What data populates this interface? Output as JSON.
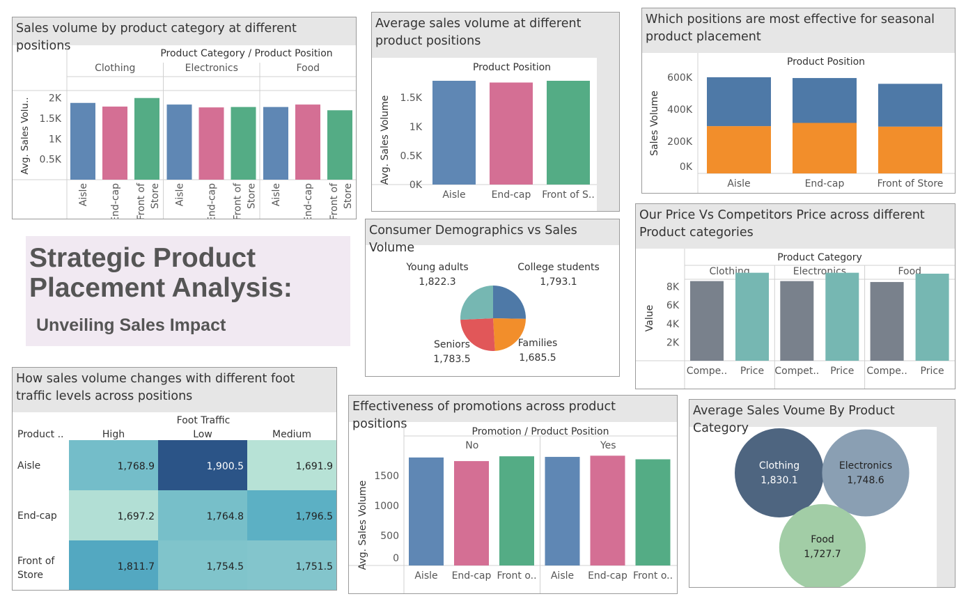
{
  "colors": {
    "aisle": "#5f87b4",
    "endcap": "#d46f94",
    "front": "#54ac85",
    "blue": "#4e79a7",
    "orange": "#f28e2b",
    "red": "#e15759",
    "teal": "#76b7b2",
    "grey": "#79818c"
  },
  "dashboard": {
    "title_line1": "Strategic Product",
    "title_line2": "Placement Analysis:",
    "subtitle": "Unveiling Sales Impact"
  },
  "panels": {
    "category_positions": {
      "title": "Sales volume by product category at different positions",
      "header": "Product Category  /  Product Position",
      "ylabel": "Avg. Sales Volu..",
      "yticks": [
        "2K",
        "1.5K",
        "1K",
        "0.5K"
      ],
      "groups": [
        "Clothing",
        "Electronics",
        "Food"
      ],
      "xlabels": [
        "Aisle",
        "End-cap",
        "Front of Store"
      ]
    },
    "avg_positions": {
      "title": "Average sales volume at different product positions",
      "header": "Product Position",
      "ylabel": "Avg. Sales Volume",
      "yticks": [
        "1.5K",
        "1K",
        "0.5K",
        "0K"
      ],
      "xlabels": [
        "Aisle",
        "End-cap",
        "Front of S.."
      ]
    },
    "seasonal": {
      "title": "Which positions are most effective for seasonal product placement",
      "header": "Product Position",
      "ylabel": "Sales Volume",
      "yticks": [
        "600K",
        "400K",
        "200K",
        "0K"
      ],
      "xlabels": [
        "Aisle",
        "End-cap",
        "Front of Store"
      ]
    },
    "demographics": {
      "title": "Consumer Demographics vs Sales Volume",
      "labels": [
        {
          "name": "Young adults",
          "value": "1,822.3"
        },
        {
          "name": "College students",
          "value": "1,793.1"
        },
        {
          "name": "Seniors",
          "value": "1,783.5"
        },
        {
          "name": "Families",
          "value": "1,685.5"
        }
      ]
    },
    "price": {
      "title": "Our Price Vs Competitors Price across different Product categories",
      "header": "Product Category",
      "ylabel": "Value",
      "yticks": [
        "8K",
        "6K",
        "4K",
        "2K"
      ],
      "groups": [
        "Clothing",
        "Electronics",
        "Food"
      ],
      "xlabels": [
        "Compe..",
        "Price",
        "Compet..",
        "Price",
        "Compe..",
        "Price"
      ]
    },
    "foot_traffic": {
      "title": "How sales volume changes with different foot traffic levels across positions",
      "col_group": "Foot Traffic",
      "row_header": "Product ..",
      "columns": [
        "High",
        "Low",
        "Medium"
      ],
      "rows": [
        {
          "label": "Aisle",
          "cells": [
            "1,768.9",
            "1,900.5",
            "1,691.9"
          ]
        },
        {
          "label": "End-cap",
          "cells": [
            "1,697.2",
            "1,764.8",
            "1,796.5"
          ]
        },
        {
          "label": "Front of Store",
          "cells": [
            "1,811.7",
            "1,754.5",
            "1,751.5"
          ]
        }
      ]
    },
    "promotions": {
      "title": "Effectiveness of promotions across product positions",
      "header": "Promotion  /  Product Position",
      "ylabel": "Avg. Sales Volume",
      "yticks": [
        "1500",
        "1000",
        "500",
        "0"
      ],
      "groups": [
        "No",
        "Yes"
      ],
      "xlabels": [
        "Aisle",
        "End-cap",
        "Front o..",
        "Aisle",
        "End-cap",
        "Front o.."
      ]
    },
    "category_bubbles": {
      "title": "Average Sales Voume By Product Category",
      "bubbles": [
        {
          "name": "Clothing",
          "value": "1,830.1"
        },
        {
          "name": "Electronics",
          "value": "1,748.6"
        },
        {
          "name": "Food",
          "value": "1,727.7"
        }
      ]
    }
  },
  "chart_data": [
    {
      "type": "bar",
      "id": "category_positions",
      "categories": [
        "Clothing / Aisle",
        "Clothing / End-cap",
        "Clothing / Front of Store",
        "Electronics / Aisle",
        "Electronics / End-cap",
        "Electronics / Front of Store",
        "Food / Aisle",
        "Food / End-cap",
        "Food / Front of Store"
      ],
      "values": [
        1880,
        1790,
        2000,
        1840,
        1770,
        1780,
        1780,
        1840,
        1700
      ],
      "ylim": [
        0,
        2200
      ]
    },
    {
      "type": "bar",
      "id": "avg_positions",
      "categories": [
        "Aisle",
        "End-cap",
        "Front of Store"
      ],
      "values": [
        1790,
        1760,
        1790
      ],
      "ylim": [
        0,
        1850
      ]
    },
    {
      "type": "bar",
      "id": "seasonal",
      "stacked": true,
      "categories": [
        "Aisle",
        "End-cap",
        "Front of Store"
      ],
      "series": [
        {
          "values": [
            295000,
            315000,
            292000
          ],
          "color": "#f28e2b"
        },
        {
          "values": [
            305000,
            280000,
            267000
          ],
          "color": "#4e79a7"
        }
      ],
      "ylim": [
        0,
        630000
      ]
    },
    {
      "type": "pie",
      "id": "demographics",
      "categories": [
        "College students",
        "Families",
        "Seniors",
        "Young adults"
      ],
      "values": [
        1793.1,
        1685.5,
        1783.5,
        1822.3
      ]
    },
    {
      "type": "bar",
      "id": "price",
      "categories": [
        "Clothing / Compe..",
        "Clothing / Price",
        "Electronics / Compet..",
        "Electronics / Price",
        "Food / Compe..",
        "Food / Price"
      ],
      "values": [
        8600,
        9500,
        8600,
        9500,
        8500,
        9400
      ],
      "ylim": [
        0,
        10000
      ]
    },
    {
      "type": "heatmap",
      "id": "foot_traffic",
      "x": [
        "High",
        "Low",
        "Medium"
      ],
      "y": [
        "Aisle",
        "End-cap",
        "Front of Store"
      ],
      "values": [
        [
          1768.9,
          1900.5,
          1691.9
        ],
        [
          1697.2,
          1764.8,
          1796.5
        ],
        [
          1811.7,
          1754.5,
          1751.5
        ]
      ]
    },
    {
      "type": "bar",
      "id": "promotions",
      "categories": [
        "No / Aisle",
        "No / End-cap",
        "No / Front of Store",
        "Yes / Aisle",
        "Yes / End-cap",
        "Yes / Front of Store"
      ],
      "values": [
        1800,
        1740,
        1820,
        1810,
        1830,
        1770
      ],
      "ylim": [
        0,
        1950
      ]
    },
    {
      "type": "scatter",
      "id": "category_bubbles",
      "categories": [
        "Clothing",
        "Electronics",
        "Food"
      ],
      "values": [
        1830.1,
        1748.6,
        1727.7
      ]
    }
  ]
}
